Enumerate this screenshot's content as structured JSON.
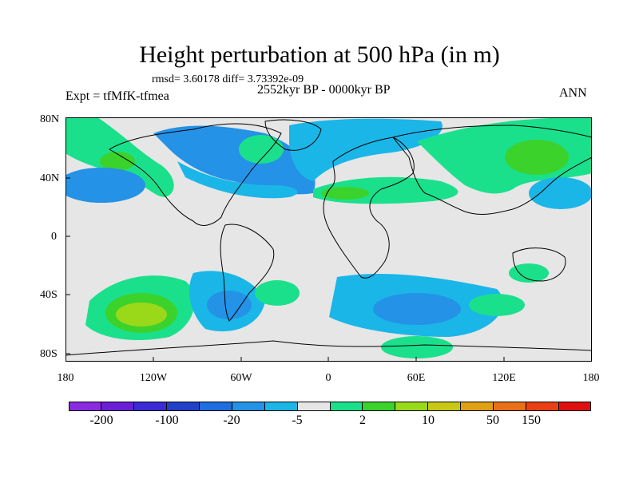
{
  "title": "Height perturbation at 500 hPa (in m)",
  "stats": "rmsd= 3.60178 diff= 3.73392e-09",
  "experiment": "Expt = tfMfK-tfmea",
  "period": "2552kyr BP - 0000kyr BP",
  "season": "ANN",
  "lat_labels": [
    "80N",
    "40N",
    "0",
    "40S",
    "80S"
  ],
  "lon_labels": [
    "180",
    "120W",
    "60W",
    "0",
    "60E",
    "120E",
    "180"
  ],
  "colorbar": {
    "colors": [
      "#8a2be2",
      "#6a1fd6",
      "#3a2bd6",
      "#2040c8",
      "#1e6ee0",
      "#2492e6",
      "#1ab6e8",
      "#e6e6e6",
      "#1ae08c",
      "#3cd22c",
      "#9ad81a",
      "#c8c814",
      "#e0a014",
      "#e87018",
      "#e84014",
      "#e01010"
    ],
    "labels": [
      "-200",
      "-100",
      "-20",
      "-5",
      "2",
      "10",
      "50",
      "150"
    ]
  },
  "chart_data": {
    "type": "map",
    "title": "Height perturbation at 500 hPa (in m)",
    "variable": "500 hPa geopotential height perturbation",
    "units": "m",
    "rmsd": 3.60178,
    "diff": 3.73392e-09,
    "levels": [
      "-200",
      "-100",
      "-20",
      "-5",
      "2",
      "10",
      "50",
      "150"
    ],
    "anomaly_regions": [
      {
        "region": "North Pacific / Alaska",
        "sign": "positive",
        "magnitude": "2-10"
      },
      {
        "region": "Central North America",
        "sign": "negative",
        "magnitude": "-5 to -2"
      },
      {
        "region": "North Atlantic / Greenland",
        "sign": "negative",
        "magnitude": "-5"
      },
      {
        "region": "Mediterranean / Middle East",
        "sign": "positive",
        "magnitude": "2-10"
      },
      {
        "region": "Siberia / East Asia",
        "sign": "positive",
        "magnitude": "2-10"
      },
      {
        "region": "South Pacific (~40S,140W)",
        "sign": "positive",
        "magnitude": "10"
      },
      {
        "region": "South Atlantic (~40S,45W)",
        "sign": "negative",
        "magnitude": "-5"
      },
      {
        "region": "Southern Indian Ocean",
        "sign": "negative",
        "magnitude": "-5"
      },
      {
        "region": "Antarctic coast (~70S,60E)",
        "sign": "positive",
        "magnitude": "2"
      }
    ]
  }
}
